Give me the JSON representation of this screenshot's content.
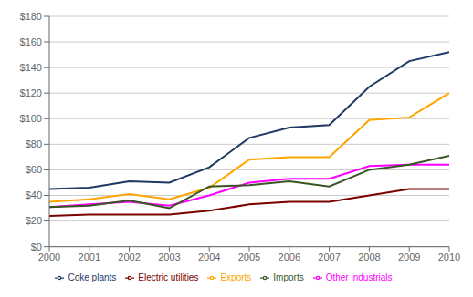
{
  "chart_data": {
    "type": "line",
    "x": [
      2000,
      2001,
      2002,
      2003,
      2004,
      2005,
      2006,
      2007,
      2008,
      2009,
      2010
    ],
    "series": [
      {
        "name": "Coke plants",
        "color": "#1F3864",
        "values": [
          45,
          46,
          51,
          50,
          62,
          85,
          93,
          95,
          125,
          145,
          152
        ]
      },
      {
        "name": "Other industrials",
        "color": "#FF00FF",
        "values": [
          31,
          33,
          35,
          32,
          40,
          50,
          53,
          53,
          63,
          64,
          64
        ]
      },
      {
        "name": "Electric utilities",
        "color": "#7B0000",
        "values": [
          24,
          25,
          25,
          25,
          28,
          33,
          35,
          35,
          40,
          45,
          45
        ]
      },
      {
        "name": "Exports",
        "color": "#FFA500",
        "values": [
          35,
          37,
          41,
          37,
          46,
          68,
          70,
          70,
          99,
          101,
          120
        ]
      },
      {
        "name": "Imports",
        "color": "#375623",
        "values": [
          31,
          32,
          36,
          30,
          47,
          48,
          51,
          47,
          60,
          64,
          71
        ]
      }
    ],
    "xlim": [
      2000,
      2010
    ],
    "xticks": [
      2000,
      2001,
      2002,
      2003,
      2004,
      2005,
      2006,
      2007,
      2008,
      2009,
      2010
    ],
    "ylim": [
      0,
      180
    ],
    "yticks": [
      {
        "value": 0,
        "label": "$0"
      },
      {
        "value": 20,
        "label": "$20"
      },
      {
        "value": 40,
        "label": "$40"
      },
      {
        "value": 60,
        "label": "$60"
      },
      {
        "value": 80,
        "label": "$80"
      },
      {
        "value": 100,
        "label": "$100"
      },
      {
        "value": 120,
        "label": "$120"
      },
      {
        "value": 140,
        "label": "$140"
      },
      {
        "value": 160,
        "label": "$160"
      },
      {
        "value": 180,
        "label": "$180"
      }
    ],
    "grid": "y",
    "legend": "bottom"
  }
}
